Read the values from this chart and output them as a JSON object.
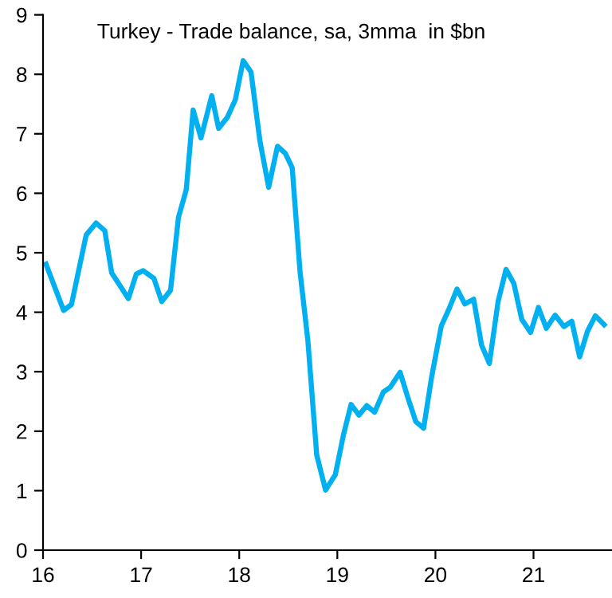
{
  "chart_data": {
    "type": "line",
    "title": "Turkey - Trade balance, sa, 3mma  in $bn",
    "x": [
      2016.03,
      2016.21,
      2016.29,
      2016.44,
      2016.54,
      2016.63,
      2016.7,
      2016.87,
      2016.95,
      2017.02,
      2017.13,
      2017.21,
      2017.3,
      2017.38,
      2017.46,
      2017.53,
      2017.61,
      2017.72,
      2017.79,
      2017.88,
      2017.96,
      2018.04,
      2018.12,
      2018.21,
      2018.3,
      2018.39,
      2018.47,
      2018.54,
      2018.62,
      2018.7,
      2018.79,
      2018.88,
      2018.98,
      2019.06,
      2019.14,
      2019.22,
      2019.3,
      2019.38,
      2019.47,
      2019.54,
      2019.64,
      2019.72,
      2019.8,
      2019.88,
      2019.96,
      2020.06,
      2020.14,
      2020.22,
      2020.3,
      2020.39,
      2020.47,
      2020.55,
      2020.64,
      2020.72,
      2020.8,
      2020.88,
      2020.97,
      2021.05,
      2021.13,
      2021.22,
      2021.31,
      2021.39,
      2021.47,
      2021.55,
      2021.63,
      2021.72
    ],
    "series": [
      {
        "color": "#00b0f0",
        "values": [
          4.81,
          4.03,
          4.13,
          5.3,
          5.5,
          5.37,
          4.66,
          4.23,
          4.64,
          4.7,
          4.57,
          4.18,
          4.37,
          5.59,
          6.06,
          7.4,
          6.93,
          7.64,
          7.09,
          7.28,
          7.57,
          8.23,
          8.04,
          6.89,
          6.1,
          6.79,
          6.67,
          6.43,
          4.68,
          3.52,
          1.6,
          1.01,
          1.27,
          1.92,
          2.45,
          2.27,
          2.43,
          2.32,
          2.66,
          2.74,
          2.99,
          2.56,
          2.16,
          2.05,
          2.9,
          3.77,
          4.06,
          4.39,
          4.14,
          4.22,
          3.45,
          3.14,
          4.19,
          4.72,
          4.48,
          3.88,
          3.66,
          4.08,
          3.73,
          3.95,
          3.76,
          3.85,
          3.25,
          3.68,
          3.94,
          3.79
        ]
      }
    ],
    "xlim": [
      2016,
      2021.8
    ],
    "xticks": [
      {
        "value": 2016,
        "label": "16"
      },
      {
        "value": 2017,
        "label": "17"
      },
      {
        "value": 2018,
        "label": "18"
      },
      {
        "value": 2019,
        "label": "19"
      },
      {
        "value": 2020,
        "label": "20"
      },
      {
        "value": 2021,
        "label": "21"
      }
    ],
    "ylim": [
      0,
      9
    ],
    "yticks": [
      0,
      1,
      2,
      3,
      4,
      5,
      6,
      7,
      8,
      9
    ],
    "grid": false,
    "marker": "none",
    "line_style": "solid"
  }
}
